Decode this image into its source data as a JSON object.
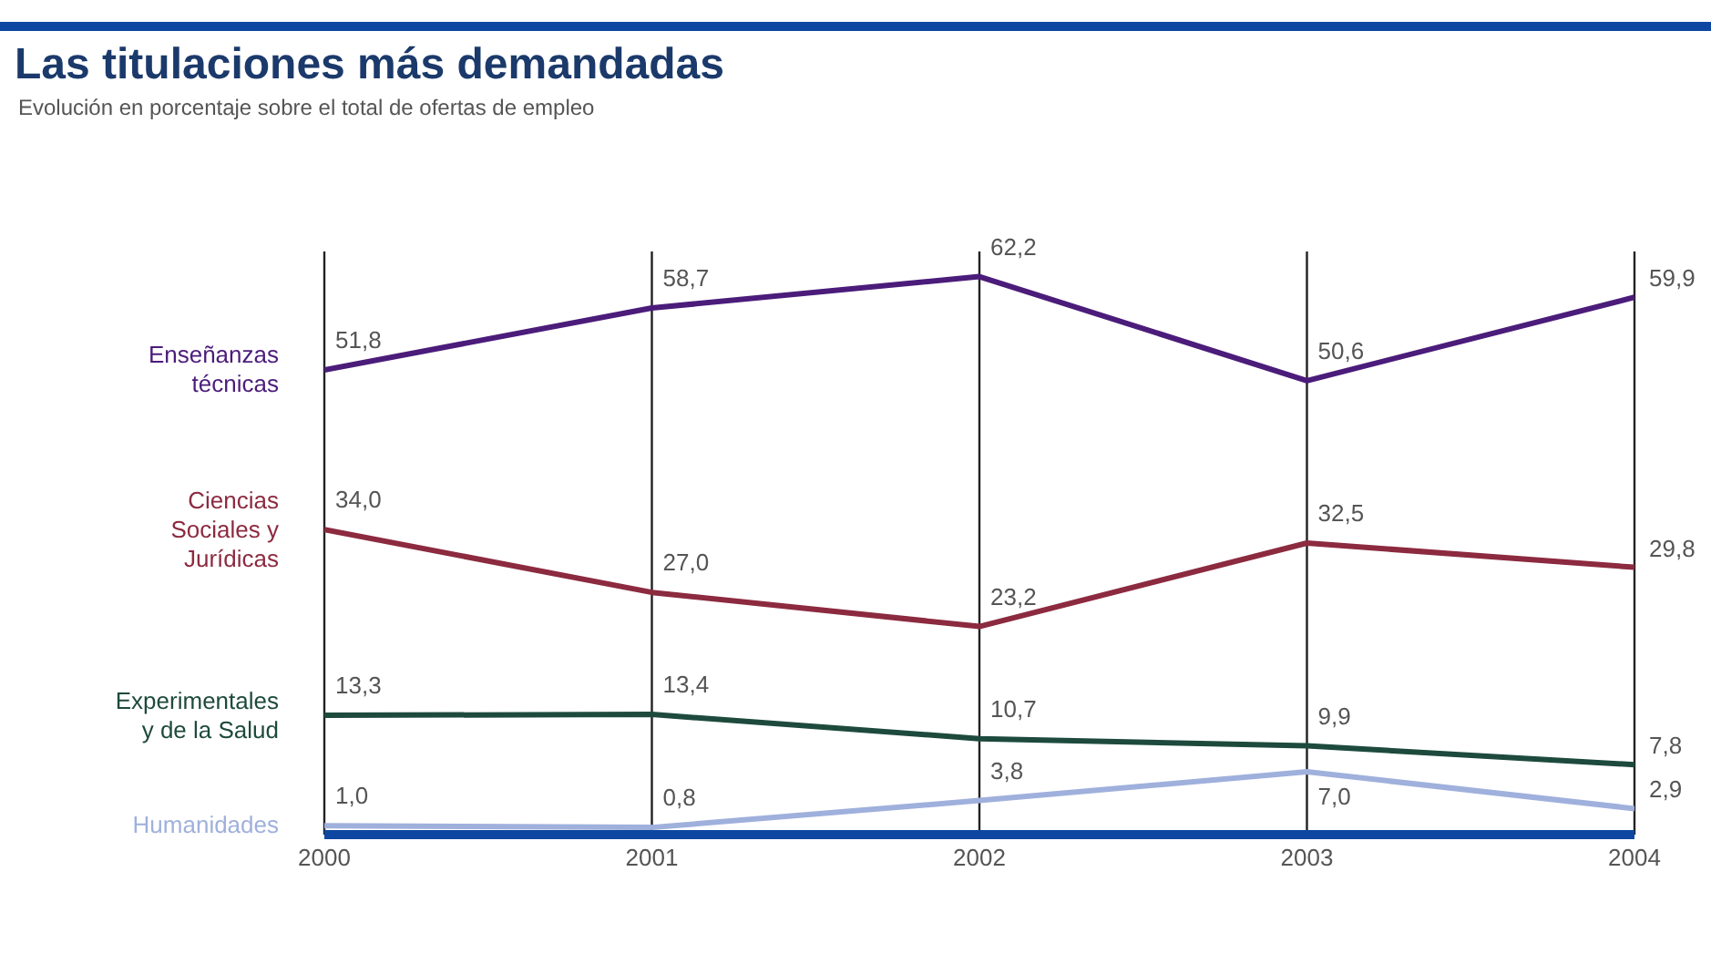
{
  "chart_data": {
    "type": "line",
    "title": "Las titulaciones más demandadas",
    "subtitle": "Evolución en porcentaje sobre el total de ofertas de empleo",
    "categories": [
      "2000",
      "2001",
      "2002",
      "2003",
      "2004"
    ],
    "series": [
      {
        "name": "Enseñanzas\ntécnicas",
        "color": "#4b1c7a",
        "values": [
          51.8,
          58.7,
          62.2,
          50.6,
          59.9
        ],
        "value_labels": [
          "51,8",
          "58,7",
          "62,2",
          "50,6",
          "59,9"
        ]
      },
      {
        "name": "Ciencias\nSociales y\nJurídicas",
        "color": "#8c2a3f",
        "values": [
          34.0,
          27.0,
          23.2,
          32.5,
          29.8
        ],
        "value_labels": [
          "34,0",
          "27,0",
          "23,2",
          "32,5",
          "29,8"
        ]
      },
      {
        "name": "Experimentales\ny de la Salud",
        "color": "#1d4a3c",
        "values": [
          13.3,
          13.4,
          10.7,
          9.9,
          7.8
        ],
        "value_labels": [
          "13,3",
          "13,4",
          "10,7",
          "9,9",
          "7,8"
        ]
      },
      {
        "name": "Humanidades",
        "color": "#9fb0dc",
        "values": [
          1.0,
          0.8,
          3.8,
          7.0,
          2.9
        ],
        "value_labels": [
          "1,0",
          "0,8",
          "3,8",
          "7,0",
          "2,9"
        ]
      }
    ],
    "ylim": [
      0,
      65
    ],
    "grid": "x",
    "tick_labels": "x",
    "marker": "none",
    "line_style": "solid",
    "legend": false
  }
}
